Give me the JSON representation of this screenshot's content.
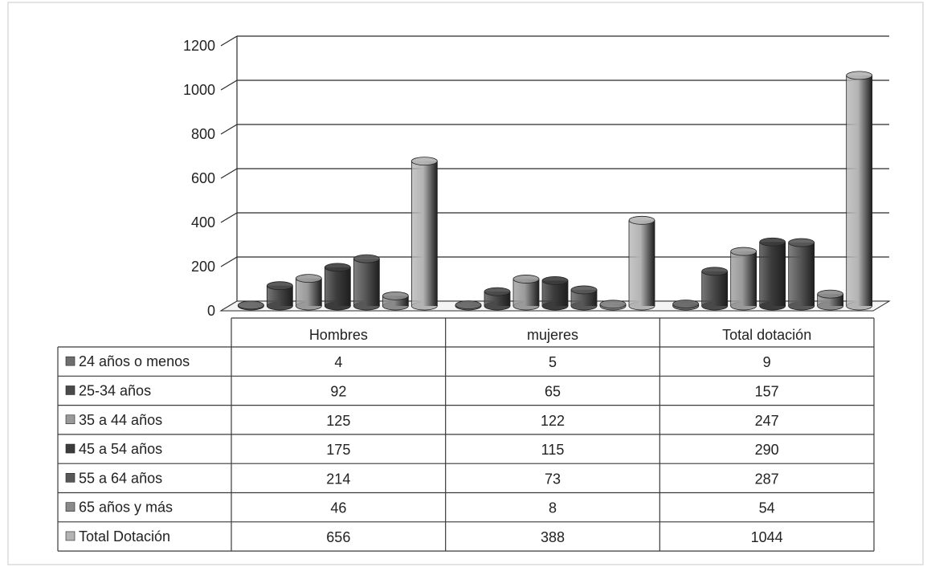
{
  "chart_data": {
    "type": "bar",
    "title": "",
    "xlabel": "",
    "ylabel": "",
    "ylim": [
      0,
      1200
    ],
    "yticks": [
      0,
      200,
      400,
      600,
      800,
      1000,
      1200
    ],
    "grid": true,
    "legend": "data-table",
    "categories": [
      "Hombres",
      "mujeres",
      "Total dotación"
    ],
    "series": [
      {
        "name": "24 años o menos",
        "values": [
          4,
          5,
          9
        ]
      },
      {
        "name": "25-34 años",
        "values": [
          92,
          65,
          157
        ]
      },
      {
        "name": "35 a 44 años",
        "values": [
          125,
          122,
          247
        ]
      },
      {
        "name": "45 a 54 años",
        "values": [
          175,
          115,
          290
        ]
      },
      {
        "name": "55 a 64 años",
        "values": [
          214,
          73,
          287
        ]
      },
      {
        "name": "65 años y más",
        "values": [
          46,
          8,
          54
        ]
      },
      {
        "name": "Total Dotación",
        "values": [
          656,
          388,
          1044
        ]
      }
    ],
    "series_colors": [
      "#6e6e6e",
      "#4a4a4a",
      "#9a9a9a",
      "#3c3c3c",
      "#585858",
      "#8a8a8a",
      "#b4b4b4"
    ]
  }
}
